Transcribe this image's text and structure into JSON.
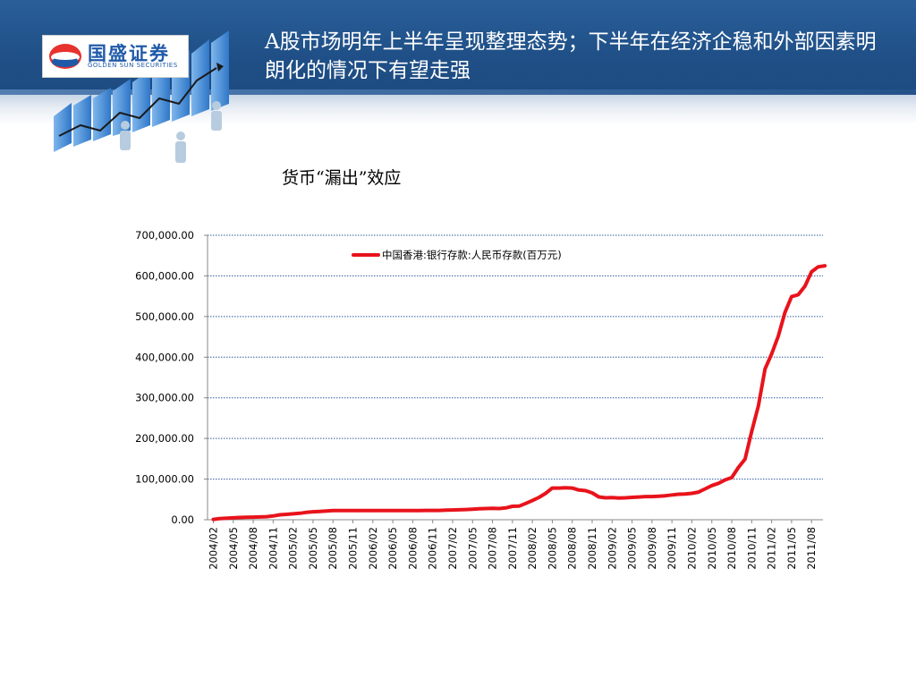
{
  "header": {
    "title": "A股市场明年上半年呈现整理态势；下半年在经济企稳和外部因素明朗化的情况下有望走强",
    "logo_cn": "国盛证券",
    "logo_en": "GOLDEN SUN SECURITIES"
  },
  "subtitle": "货币“漏出”效应",
  "colors": {
    "header_blue": "#1f4f86",
    "series_red": "#e8131b",
    "grid_blue": "#2c5aa0",
    "logo_blue": "#1f5aa8"
  },
  "chart_data": {
    "type": "line",
    "title": "",
    "xlabel": "",
    "ylabel": "",
    "ylim": [
      0,
      700000
    ],
    "y_ticks": [
      0,
      100000,
      200000,
      300000,
      400000,
      500000,
      600000,
      700000
    ],
    "y_tick_labels": [
      "0.00",
      "100,000.00",
      "200,000.00",
      "300,000.00",
      "400,000.00",
      "500,000.00",
      "600,000.00",
      "700,000.00"
    ],
    "grid": "horizontal dotted",
    "legend_position": "top-center",
    "x_tick_labels": [
      "2004/02",
      "2004/05",
      "2004/08",
      "2004/11",
      "2005/02",
      "2005/05",
      "2005/08",
      "2005/11",
      "2006/02",
      "2006/05",
      "2006/08",
      "2006/11",
      "2007/02",
      "2007/05",
      "2007/08",
      "2007/11",
      "2008/02",
      "2008/05",
      "2008/08",
      "2008/11",
      "2009/02",
      "2009/05",
      "2009/08",
      "2009/11",
      "2010/02",
      "2010/05",
      "2010/08",
      "2010/11",
      "2011/02",
      "2011/05",
      "2011/08"
    ],
    "series": [
      {
        "name": "中国香港:银行存款:人民币存款(百万元)",
        "color": "#e8131b",
        "x": [
          "2004/02",
          "2004/03",
          "2004/04",
          "2004/05",
          "2004/06",
          "2004/07",
          "2004/08",
          "2004/09",
          "2004/10",
          "2004/11",
          "2004/12",
          "2005/01",
          "2005/02",
          "2005/03",
          "2005/04",
          "2005/05",
          "2005/06",
          "2005/07",
          "2005/08",
          "2005/09",
          "2005/10",
          "2005/11",
          "2005/12",
          "2006/01",
          "2006/02",
          "2006/03",
          "2006/04",
          "2006/05",
          "2006/06",
          "2006/07",
          "2006/08",
          "2006/09",
          "2006/10",
          "2006/11",
          "2006/12",
          "2007/01",
          "2007/02",
          "2007/03",
          "2007/04",
          "2007/05",
          "2007/06",
          "2007/07",
          "2007/08",
          "2007/09",
          "2007/10",
          "2007/11",
          "2007/12",
          "2008/01",
          "2008/02",
          "2008/03",
          "2008/04",
          "2008/05",
          "2008/06",
          "2008/07",
          "2008/08",
          "2008/09",
          "2008/10",
          "2008/11",
          "2008/12",
          "2009/01",
          "2009/02",
          "2009/03",
          "2009/04",
          "2009/05",
          "2009/06",
          "2009/07",
          "2009/08",
          "2009/09",
          "2009/10",
          "2009/11",
          "2009/12",
          "2010/01",
          "2010/02",
          "2010/03",
          "2010/04",
          "2010/05",
          "2010/06",
          "2010/07",
          "2010/08",
          "2010/09",
          "2010/10",
          "2010/11",
          "2010/12",
          "2011/01",
          "2011/02",
          "2011/03",
          "2011/04",
          "2011/05",
          "2011/06",
          "2011/07",
          "2011/08",
          "2011/09",
          "2011/10"
        ],
        "values": [
          895,
          2900,
          3800,
          4600,
          5400,
          5900,
          6300,
          6800,
          7500,
          9200,
          12100,
          13300,
          14500,
          15800,
          18000,
          19500,
          20500,
          21500,
          22400,
          22600,
          22600,
          22600,
          22600,
          22600,
          22600,
          22600,
          22600,
          22600,
          22600,
          22600,
          22600,
          22700,
          22900,
          23000,
          23000,
          23500,
          24000,
          24500,
          25000,
          26000,
          27000,
          27500,
          28000,
          27500,
          29000,
          33000,
          33400,
          40000,
          47000,
          55000,
          65000,
          78000,
          78000,
          78500,
          78000,
          73000,
          71500,
          66000,
          56100,
          54000,
          54500,
          53500,
          54000,
          55000,
          56000,
          57000,
          57000,
          57800,
          59000,
          61000,
          62700,
          63500,
          65000,
          68000,
          76000,
          84000,
          89700,
          98000,
          103700,
          128700,
          149300,
          217100,
          279900,
          370600,
          407800,
          451500,
          510000,
          548900,
          553600,
          574600,
          609900,
          622200,
          625000
        ]
      }
    ]
  }
}
